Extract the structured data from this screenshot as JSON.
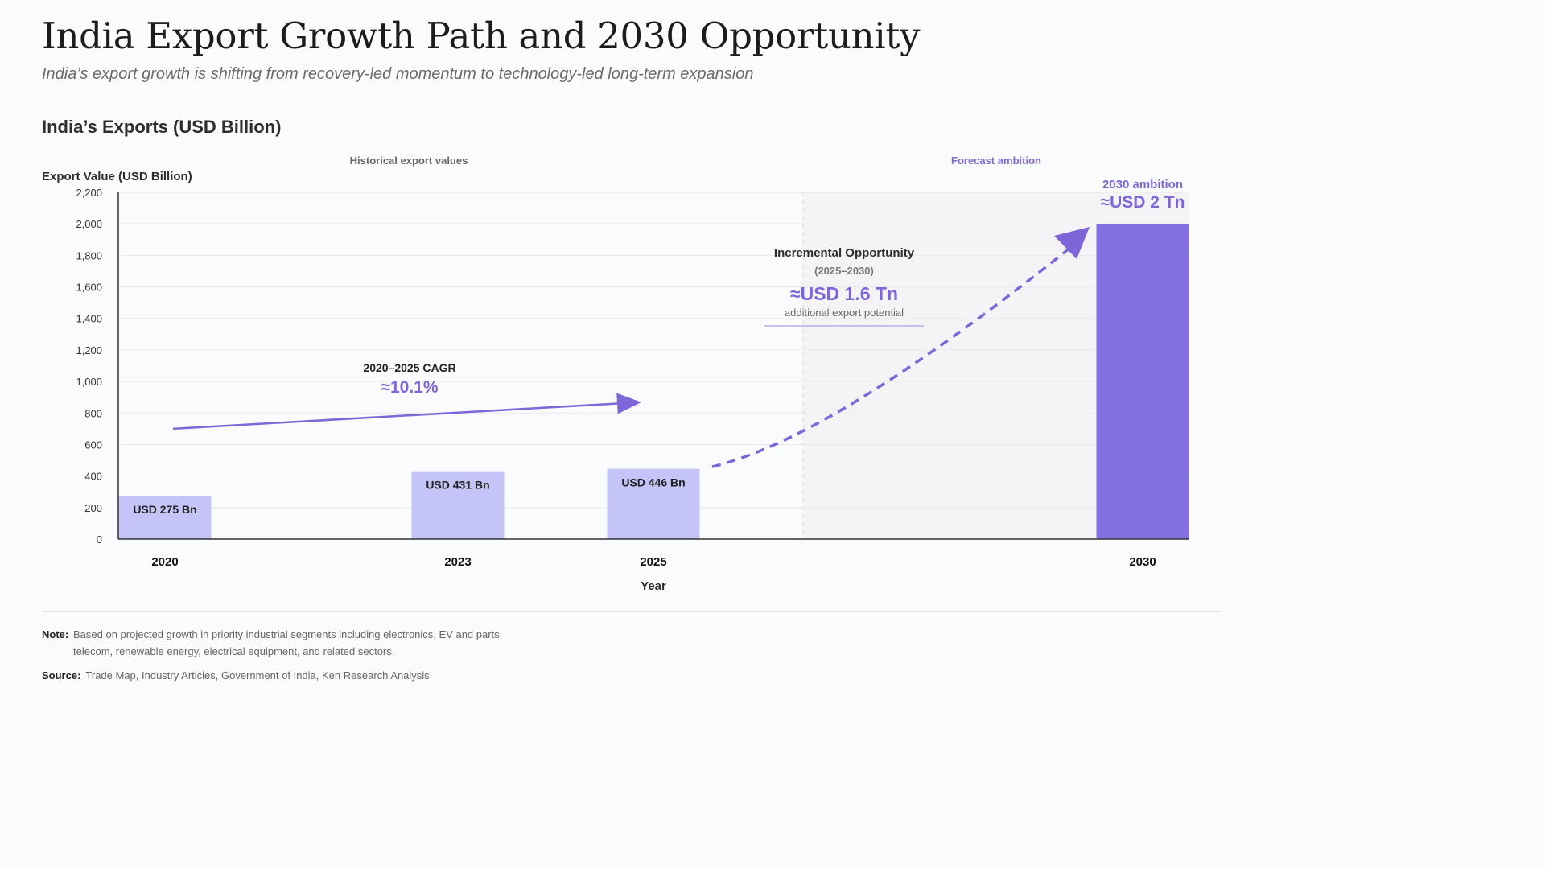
{
  "header": {
    "title": "India Export Growth Path and 2030 Opportunity",
    "subtitle": "India’s export growth is shifting from recovery-led momentum to technology-led long-term expansion"
  },
  "chart_data": {
    "type": "bar",
    "title": "India’s Exports (USD Billion)",
    "ylabel": "Export Value (USD Billion)",
    "xlabel": "Year",
    "ylim": [
      0,
      2200
    ],
    "yticks": [
      0,
      200,
      400,
      600,
      800,
      1000,
      1200,
      1400,
      1600,
      1800,
      2000,
      2200
    ],
    "grid": true,
    "categories": [
      "2020",
      "2023",
      "2025",
      "2030"
    ],
    "values": [
      275,
      431,
      446,
      2000
    ],
    "bar_labels": [
      "USD 275 Bn",
      "USD 431 Bn",
      "USD 446 Bn",
      ""
    ],
    "bar_kinds": [
      "historical",
      "historical",
      "historical",
      "forecast"
    ],
    "regions": {
      "historical_label": "Historical export values",
      "forecast_label": "Forecast ambition"
    },
    "annotations": {
      "cagr": {
        "label": "2020–2025 CAGR",
        "value": "≈10.1%",
        "arrow_from": [
          "2020",
          700
        ],
        "arrow_to": [
          "2025",
          860
        ]
      },
      "incremental": {
        "title": "Incremental Opportunity",
        "period": "(2025–2030)",
        "value": "≈USD 1.6 Tn",
        "caption": "additional export potential"
      },
      "ambition": {
        "label": "2030 ambition",
        "value": "≈USD 2 Tn"
      }
    },
    "colors": {
      "historical": "#c4c4f8",
      "forecast": "#8470e0",
      "accent": "#7e66d8",
      "forecast_region": "#f4f4f6"
    }
  },
  "footer": {
    "note_label": "Note:",
    "note_text": "Based on projected growth in priority industrial segments including electronics, EV and parts, telecom, renewable energy, electrical equipment, and related sectors.",
    "source_label": "Source:",
    "source_text": "Trade Map, Industry Articles, Government of India, Ken Research Analysis"
  }
}
